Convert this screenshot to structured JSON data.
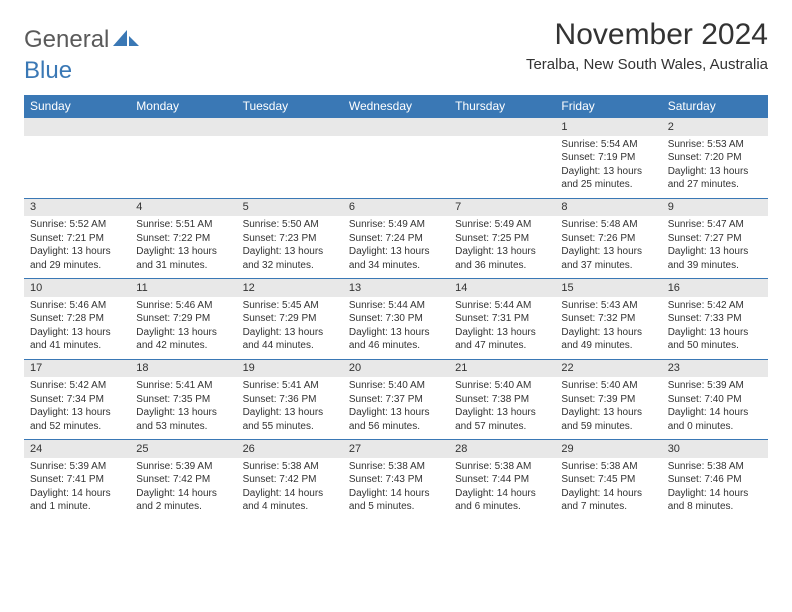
{
  "brand": {
    "part1": "General",
    "part2": "Blue"
  },
  "title": "November 2024",
  "location": "Teralba, New South Wales, Australia",
  "colors": {
    "header_bg": "#3a78b5",
    "header_fg": "#ffffff",
    "daynum_bg": "#e8e8e8",
    "rule": "#3a78b5",
    "text": "#333333",
    "logo_gray": "#5a5a5a",
    "logo_blue": "#3a78b5",
    "page_bg": "#ffffff"
  },
  "days_of_week": [
    "Sunday",
    "Monday",
    "Tuesday",
    "Wednesday",
    "Thursday",
    "Friday",
    "Saturday"
  ],
  "weeks": [
    [
      {
        "n": "",
        "sr": "",
        "ss": "",
        "dl": ""
      },
      {
        "n": "",
        "sr": "",
        "ss": "",
        "dl": ""
      },
      {
        "n": "",
        "sr": "",
        "ss": "",
        "dl": ""
      },
      {
        "n": "",
        "sr": "",
        "ss": "",
        "dl": ""
      },
      {
        "n": "",
        "sr": "",
        "ss": "",
        "dl": ""
      },
      {
        "n": "1",
        "sr": "Sunrise: 5:54 AM",
        "ss": "Sunset: 7:19 PM",
        "dl": "Daylight: 13 hours and 25 minutes."
      },
      {
        "n": "2",
        "sr": "Sunrise: 5:53 AM",
        "ss": "Sunset: 7:20 PM",
        "dl": "Daylight: 13 hours and 27 minutes."
      }
    ],
    [
      {
        "n": "3",
        "sr": "Sunrise: 5:52 AM",
        "ss": "Sunset: 7:21 PM",
        "dl": "Daylight: 13 hours and 29 minutes."
      },
      {
        "n": "4",
        "sr": "Sunrise: 5:51 AM",
        "ss": "Sunset: 7:22 PM",
        "dl": "Daylight: 13 hours and 31 minutes."
      },
      {
        "n": "5",
        "sr": "Sunrise: 5:50 AM",
        "ss": "Sunset: 7:23 PM",
        "dl": "Daylight: 13 hours and 32 minutes."
      },
      {
        "n": "6",
        "sr": "Sunrise: 5:49 AM",
        "ss": "Sunset: 7:24 PM",
        "dl": "Daylight: 13 hours and 34 minutes."
      },
      {
        "n": "7",
        "sr": "Sunrise: 5:49 AM",
        "ss": "Sunset: 7:25 PM",
        "dl": "Daylight: 13 hours and 36 minutes."
      },
      {
        "n": "8",
        "sr": "Sunrise: 5:48 AM",
        "ss": "Sunset: 7:26 PM",
        "dl": "Daylight: 13 hours and 37 minutes."
      },
      {
        "n": "9",
        "sr": "Sunrise: 5:47 AM",
        "ss": "Sunset: 7:27 PM",
        "dl": "Daylight: 13 hours and 39 minutes."
      }
    ],
    [
      {
        "n": "10",
        "sr": "Sunrise: 5:46 AM",
        "ss": "Sunset: 7:28 PM",
        "dl": "Daylight: 13 hours and 41 minutes."
      },
      {
        "n": "11",
        "sr": "Sunrise: 5:46 AM",
        "ss": "Sunset: 7:29 PM",
        "dl": "Daylight: 13 hours and 42 minutes."
      },
      {
        "n": "12",
        "sr": "Sunrise: 5:45 AM",
        "ss": "Sunset: 7:29 PM",
        "dl": "Daylight: 13 hours and 44 minutes."
      },
      {
        "n": "13",
        "sr": "Sunrise: 5:44 AM",
        "ss": "Sunset: 7:30 PM",
        "dl": "Daylight: 13 hours and 46 minutes."
      },
      {
        "n": "14",
        "sr": "Sunrise: 5:44 AM",
        "ss": "Sunset: 7:31 PM",
        "dl": "Daylight: 13 hours and 47 minutes."
      },
      {
        "n": "15",
        "sr": "Sunrise: 5:43 AM",
        "ss": "Sunset: 7:32 PM",
        "dl": "Daylight: 13 hours and 49 minutes."
      },
      {
        "n": "16",
        "sr": "Sunrise: 5:42 AM",
        "ss": "Sunset: 7:33 PM",
        "dl": "Daylight: 13 hours and 50 minutes."
      }
    ],
    [
      {
        "n": "17",
        "sr": "Sunrise: 5:42 AM",
        "ss": "Sunset: 7:34 PM",
        "dl": "Daylight: 13 hours and 52 minutes."
      },
      {
        "n": "18",
        "sr": "Sunrise: 5:41 AM",
        "ss": "Sunset: 7:35 PM",
        "dl": "Daylight: 13 hours and 53 minutes."
      },
      {
        "n": "19",
        "sr": "Sunrise: 5:41 AM",
        "ss": "Sunset: 7:36 PM",
        "dl": "Daylight: 13 hours and 55 minutes."
      },
      {
        "n": "20",
        "sr": "Sunrise: 5:40 AM",
        "ss": "Sunset: 7:37 PM",
        "dl": "Daylight: 13 hours and 56 minutes."
      },
      {
        "n": "21",
        "sr": "Sunrise: 5:40 AM",
        "ss": "Sunset: 7:38 PM",
        "dl": "Daylight: 13 hours and 57 minutes."
      },
      {
        "n": "22",
        "sr": "Sunrise: 5:40 AM",
        "ss": "Sunset: 7:39 PM",
        "dl": "Daylight: 13 hours and 59 minutes."
      },
      {
        "n": "23",
        "sr": "Sunrise: 5:39 AM",
        "ss": "Sunset: 7:40 PM",
        "dl": "Daylight: 14 hours and 0 minutes."
      }
    ],
    [
      {
        "n": "24",
        "sr": "Sunrise: 5:39 AM",
        "ss": "Sunset: 7:41 PM",
        "dl": "Daylight: 14 hours and 1 minute."
      },
      {
        "n": "25",
        "sr": "Sunrise: 5:39 AM",
        "ss": "Sunset: 7:42 PM",
        "dl": "Daylight: 14 hours and 2 minutes."
      },
      {
        "n": "26",
        "sr": "Sunrise: 5:38 AM",
        "ss": "Sunset: 7:42 PM",
        "dl": "Daylight: 14 hours and 4 minutes."
      },
      {
        "n": "27",
        "sr": "Sunrise: 5:38 AM",
        "ss": "Sunset: 7:43 PM",
        "dl": "Daylight: 14 hours and 5 minutes."
      },
      {
        "n": "28",
        "sr": "Sunrise: 5:38 AM",
        "ss": "Sunset: 7:44 PM",
        "dl": "Daylight: 14 hours and 6 minutes."
      },
      {
        "n": "29",
        "sr": "Sunrise: 5:38 AM",
        "ss": "Sunset: 7:45 PM",
        "dl": "Daylight: 14 hours and 7 minutes."
      },
      {
        "n": "30",
        "sr": "Sunrise: 5:38 AM",
        "ss": "Sunset: 7:46 PM",
        "dl": "Daylight: 14 hours and 8 minutes."
      }
    ]
  ]
}
